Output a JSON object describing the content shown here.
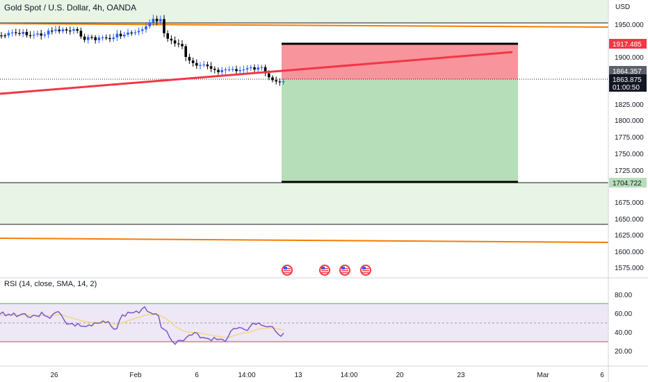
{
  "header": {
    "symbol": "Gold Spot / U.S. Dollar, 4h, OANDA"
  },
  "price_axis": {
    "currency": "USD",
    "ticks": [
      "1950.000",
      "1925.000",
      "1900.000",
      "1825.000",
      "1800.000",
      "1775.000",
      "1750.000",
      "1725.000",
      "1675.000",
      "1650.000",
      "1625.000",
      "1600.000",
      "1575.000"
    ]
  },
  "price_tags": {
    "stop": "1917.485",
    "last": "1864.357",
    "current": "1863.875",
    "countdown": "01:00:50",
    "target": "1704.722"
  },
  "time_axis": {
    "labels": [
      "26",
      "Feb",
      "6",
      "14:00",
      "13",
      "14:00",
      "20",
      "23",
      "Mar",
      "6"
    ]
  },
  "rsi": {
    "label": "RSI (14, close, SMA, 14, 2)",
    "ticks": [
      "80.00",
      "60.00",
      "40.00",
      "20.00"
    ],
    "upper_band": 70,
    "lower_band": 30,
    "mid_band": 50
  },
  "colors": {
    "up_candle": "#2962ff",
    "down_candle": "#000000",
    "trendline": "#f23645",
    "orange_line": "#f57c00",
    "zone_green": "#e7f4e6",
    "stop_zone": "#f7949c",
    "target_zone": "#b6deb8",
    "rsi_line": "#7e57c2",
    "rsi_sma": "#f5d76e",
    "rsi_band": "#ede7f6"
  },
  "icons": [
    "us-flag-event-icon",
    "us-flag-event-icon",
    "us-flag-event-icon",
    "us-flag-event-icon"
  ]
}
